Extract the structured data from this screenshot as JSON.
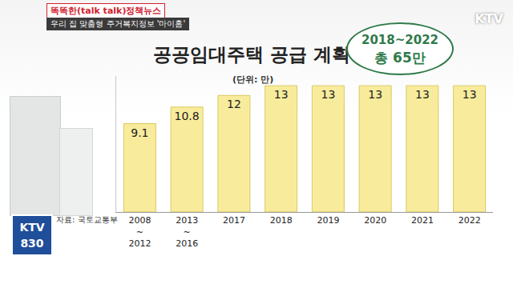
{
  "header": {
    "program": "똑똑한(talk talk)정책뉴스",
    "subtitle": "우리 집 맞춤형 주거복지정보 '마이홈'"
  },
  "logos": {
    "top": "KTV",
    "bottom": [
      "KTV",
      "830"
    ]
  },
  "chart_data": {
    "type": "bar",
    "title": "공공임대주택 공급 계획",
    "subtitle": "(단위: 만)",
    "source": "자료: 국토교통부",
    "annotations": [
      "2018~2022",
      "총 65만"
    ],
    "categories": [
      "2008~2012",
      "2013~2016",
      "2017",
      "2018",
      "2019",
      "2020",
      "2021",
      "2022"
    ],
    "values": [
      9.1,
      10.8,
      12,
      13,
      13,
      13,
      13,
      13
    ],
    "color": "#f8ec9c",
    "ylim": [
      0,
      14
    ],
    "yticks": [],
    "grid": false,
    "data_labels": true,
    "tick_labels": "x"
  }
}
